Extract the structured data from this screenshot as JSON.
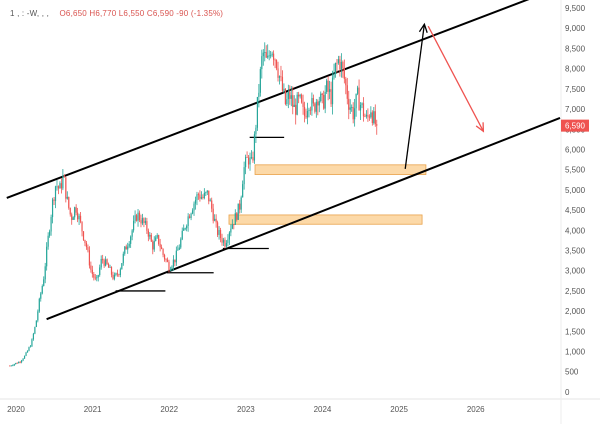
{
  "header": {
    "symbol": "1  ,  : -W,  ,  ,",
    "ohlc": "O6,650  H6,770  L6,550  C6,590  -90  (-1.35%)"
  },
  "colors": {
    "up": "#26a69a",
    "down": "#ef5350",
    "channel": "#000000",
    "zone_fill": "#fcd9a8",
    "zone_stroke": "#e9a24a",
    "projection_up": "#000000",
    "projection_down": "#ef5350",
    "price_label_bg": "#ef5350"
  },
  "chart_data": {
    "type": "candlestick",
    "interval": "weekly",
    "title": "",
    "x_ticks": [
      "2020",
      "2021",
      "2022",
      "2023",
      "2024",
      "2025",
      "2026"
    ],
    "y_ticks": [
      0,
      500,
      1000,
      1500,
      2000,
      2500,
      3000,
      3500,
      4000,
      4500,
      5000,
      5500,
      6000,
      6500,
      7000,
      7500,
      8000,
      8500,
      9000,
      9500
    ],
    "y_tick_labels": [
      "0",
      "500",
      "1,000",
      "1,500",
      "2,000",
      "2,500",
      "3,000",
      "3,500",
      "4,000",
      "4,500",
      "5,000",
      "5,500",
      "6,000",
      "6,500",
      "7,000",
      "7,500",
      "8,000",
      "8,500",
      "9,000",
      "9,500"
    ],
    "ylim": [
      -150,
      9600
    ],
    "xlim": [
      2019.87,
      2027.1
    ],
    "last_price": 6590,
    "last_price_label": "6,590",
    "price_path": [
      [
        2019.92,
        650
      ],
      [
        2020.05,
        750
      ],
      [
        2020.12,
        900
      ],
      [
        2020.2,
        1200
      ],
      [
        2020.26,
        1700
      ],
      [
        2020.31,
        2300
      ],
      [
        2020.36,
        2800
      ],
      [
        2020.42,
        3800
      ],
      [
        2020.47,
        4600
      ],
      [
        2020.52,
        5150
      ],
      [
        2020.57,
        5000
      ],
      [
        2020.62,
        5350
      ],
      [
        2020.66,
        4800
      ],
      [
        2020.72,
        4300
      ],
      [
        2020.78,
        4600
      ],
      [
        2020.85,
        4100
      ],
      [
        2020.92,
        3600
      ],
      [
        2020.98,
        3000
      ],
      [
        2021.05,
        2700
      ],
      [
        2021.12,
        3300
      ],
      [
        2021.2,
        3100
      ],
      [
        2021.28,
        2800
      ],
      [
        2021.35,
        3000
      ],
      [
        2021.42,
        3500
      ],
      [
        2021.5,
        3900
      ],
      [
        2021.58,
        4400
      ],
      [
        2021.64,
        4250
      ],
      [
        2021.72,
        4000
      ],
      [
        2021.78,
        3600
      ],
      [
        2021.85,
        3800
      ],
      [
        2021.92,
        3400
      ],
      [
        2022.0,
        3100
      ],
      [
        2022.08,
        3300
      ],
      [
        2022.16,
        3800
      ],
      [
        2022.22,
        4200
      ],
      [
        2022.3,
        4600
      ],
      [
        2022.38,
        4900
      ],
      [
        2022.44,
        4800
      ],
      [
        2022.5,
        4900
      ],
      [
        2022.56,
        4500
      ],
      [
        2022.62,
        4000
      ],
      [
        2022.68,
        3800
      ],
      [
        2022.73,
        3700
      ],
      [
        2022.8,
        4100
      ],
      [
        2022.86,
        4300
      ],
      [
        2022.92,
        4600
      ],
      [
        2022.97,
        5500
      ],
      [
        2023.03,
        5800
      ],
      [
        2023.08,
        5600
      ],
      [
        2023.12,
        6400
      ],
      [
        2023.17,
        7500
      ],
      [
        2023.22,
        8400
      ],
      [
        2023.28,
        8100
      ],
      [
        2023.33,
        8600
      ],
      [
        2023.4,
        8200
      ],
      [
        2023.46,
        7600
      ],
      [
        2023.52,
        7100
      ],
      [
        2023.57,
        7350
      ],
      [
        2023.63,
        7000
      ],
      [
        2023.7,
        7200
      ],
      [
        2023.76,
        6800
      ],
      [
        2023.82,
        7250
      ],
      [
        2023.88,
        7000
      ],
      [
        2023.94,
        7350
      ],
      [
        2024.0,
        7100
      ],
      [
        2024.05,
        7500
      ],
      [
        2024.11,
        7300
      ],
      [
        2024.17,
        8000
      ],
      [
        2024.22,
        8250
      ],
      [
        2024.28,
        7800
      ],
      [
        2024.34,
        7200
      ],
      [
        2024.4,
        6900
      ],
      [
        2024.46,
        7300
      ],
      [
        2024.52,
        7000
      ],
      [
        2024.58,
        6700
      ],
      [
        2024.63,
        7050
      ],
      [
        2024.68,
        6650
      ],
      [
        2024.72,
        6590
      ]
    ],
    "channel_upper": [
      [
        2019.88,
        4800
      ],
      [
        2026.9,
        9870
      ]
    ],
    "channel_lower": [
      [
        2020.4,
        1800
      ],
      [
        2027.1,
        6780
      ]
    ],
    "support_lines": [
      {
        "x1": 2021.3,
        "x2": 2021.95,
        "y": 2500
      },
      {
        "x1": 2021.97,
        "x2": 2022.58,
        "y": 2950
      },
      {
        "x1": 2022.7,
        "x2": 2023.3,
        "y": 3550
      },
      {
        "x1": 2023.05,
        "x2": 2023.5,
        "y": 6300
      }
    ],
    "zones": [
      {
        "x1": 2023.12,
        "x2": 2025.35,
        "y_low": 5380,
        "y_high": 5620
      },
      {
        "x1": 2022.78,
        "x2": 2025.3,
        "y_low": 4150,
        "y_high": 4380
      }
    ],
    "projection_up": [
      [
        2025.08,
        5520
      ],
      [
        2025.33,
        9100
      ]
    ],
    "projection_down": [
      [
        2025.38,
        9050
      ],
      [
        2026.1,
        6450
      ]
    ]
  }
}
